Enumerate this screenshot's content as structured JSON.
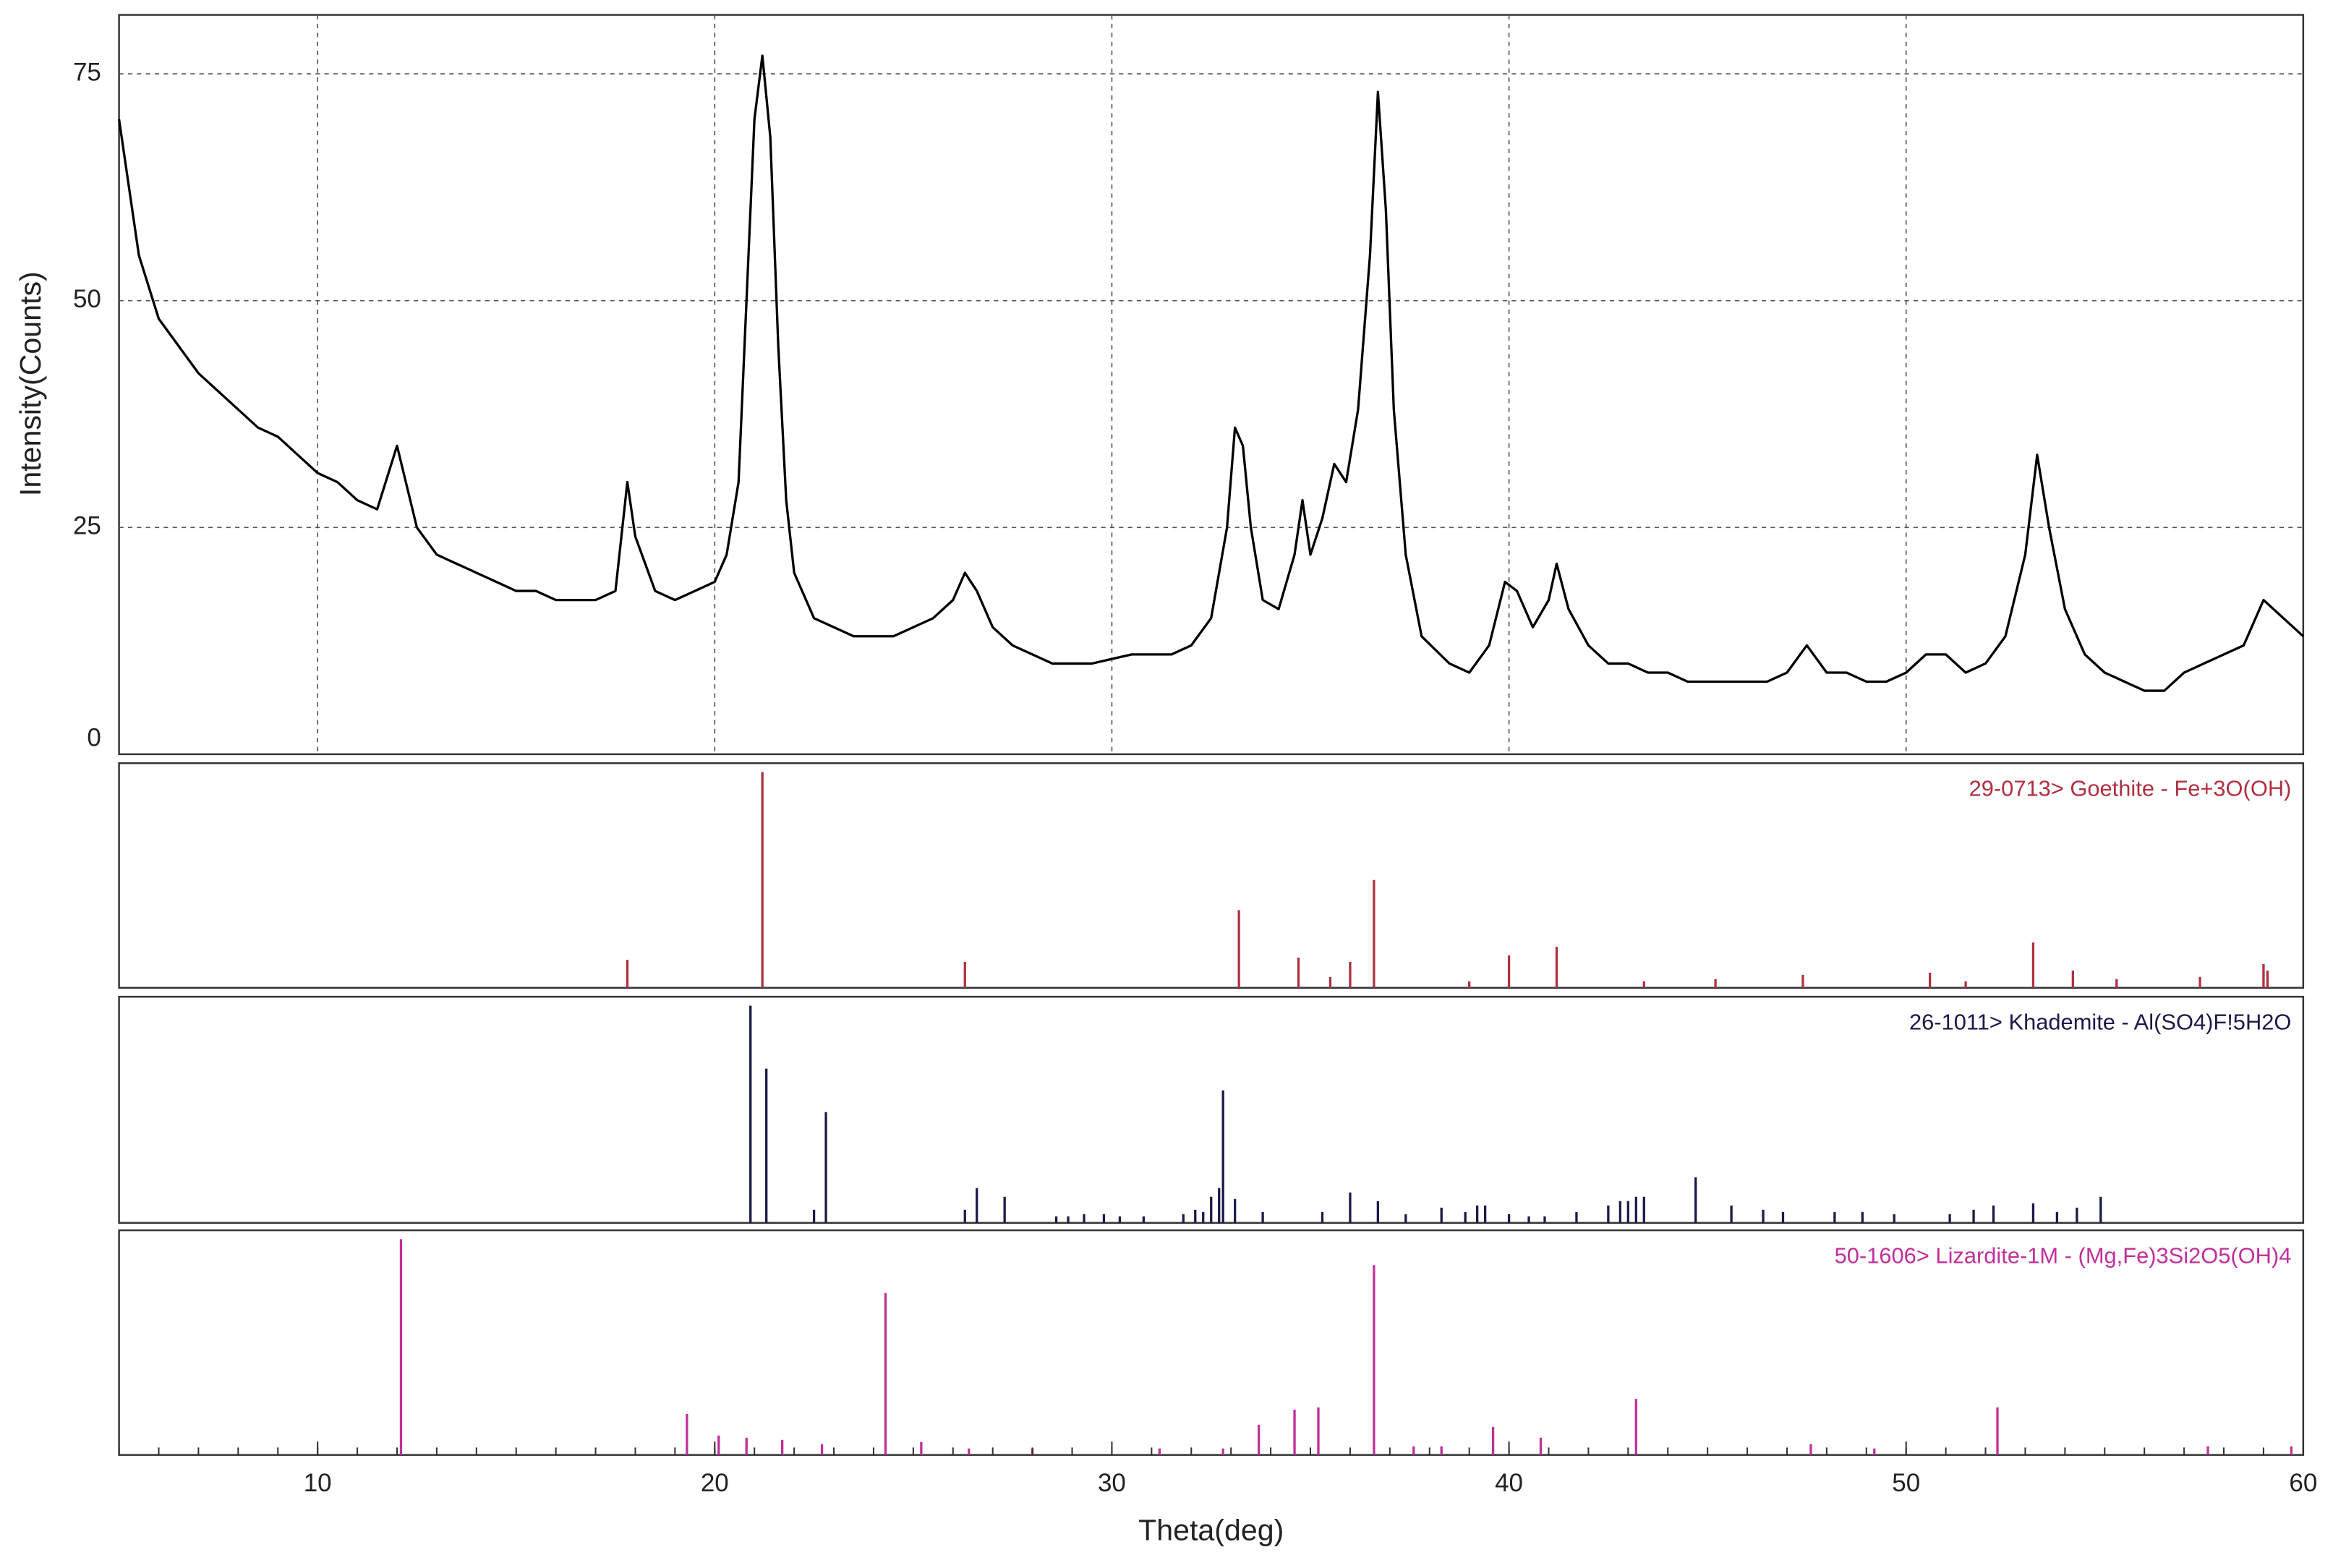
{
  "chart_data": [
    {
      "type": "line",
      "ylabel": "Intensity(Counts)",
      "color": "#000000",
      "grid": true,
      "xlim": [
        5,
        60
      ],
      "ylim": [
        0,
        81.5
      ],
      "xticks": [
        10,
        20,
        30,
        40,
        50,
        60
      ],
      "yticks": [
        0,
        25,
        50,
        75
      ],
      "x": [
        5,
        5.5,
        6,
        6.5,
        7,
        7.5,
        8,
        8.5,
        9,
        9.5,
        10,
        10.5,
        11,
        11.5,
        12,
        12.5,
        13,
        13.5,
        14,
        14.5,
        15,
        15.5,
        16,
        16.5,
        17,
        17.5,
        17.8,
        18,
        18.5,
        19,
        19.5,
        20,
        20.3,
        20.6,
        20.8,
        21,
        21.2,
        21.4,
        21.6,
        21.8,
        22,
        22.5,
        23,
        23.5,
        24,
        24.5,
        25,
        25.5,
        26,
        26.3,
        26.6,
        27,
        27.5,
        28,
        28.5,
        29,
        29.5,
        30,
        30.5,
        31,
        31.5,
        32,
        32.5,
        32.9,
        33.1,
        33.3,
        33.5,
        33.8,
        34.2,
        34.6,
        34.8,
        35,
        35.3,
        35.6,
        35.9,
        36.2,
        36.5,
        36.7,
        36.9,
        37.1,
        37.4,
        37.8,
        38.5,
        39,
        39.5,
        39.9,
        40.2,
        40.6,
        41,
        41.2,
        41.5,
        42,
        42.5,
        43,
        43.5,
        44,
        44.5,
        45,
        45.5,
        46,
        46.5,
        47,
        47.5,
        48,
        48.5,
        49,
        49.5,
        50,
        50.5,
        51,
        51.5,
        52,
        52.5,
        53,
        53.3,
        53.6,
        54,
        54.5,
        55,
        55.5,
        56,
        56.5,
        57,
        57.5,
        58,
        58.5,
        59,
        59.5,
        60
      ],
      "values": [
        70,
        55,
        48,
        45,
        42,
        40,
        38,
        36,
        35,
        33,
        31,
        30,
        28,
        27,
        34,
        25,
        22,
        21,
        20,
        19,
        18,
        18,
        17,
        17,
        17,
        18,
        30,
        24,
        18,
        17,
        18,
        19,
        22,
        30,
        50,
        70,
        77,
        68,
        45,
        28,
        20,
        15,
        14,
        13,
        13,
        13,
        14,
        15,
        17,
        20,
        18,
        14,
        12,
        11,
        10,
        10,
        10,
        10.5,
        11,
        11,
        11,
        12,
        15,
        25,
        36,
        34,
        25,
        17,
        16,
        22,
        28,
        22,
        26,
        32,
        30,
        38,
        55,
        73,
        60,
        38,
        22,
        13,
        10,
        9,
        12,
        19,
        18,
        14,
        17,
        21,
        16,
        12,
        10,
        10,
        9,
        9,
        8,
        8,
        8,
        8,
        8,
        9,
        12,
        9,
        9,
        8,
        8,
        9,
        11,
        11,
        9,
        10,
        13,
        22,
        33,
        25,
        16,
        11,
        9,
        8,
        7,
        7,
        9,
        10,
        11,
        12,
        17,
        15,
        13
      ]
    },
    {
      "type": "stick",
      "title": "29-0713> Goethite - Fe+3O(OH)",
      "color": "#b03040",
      "xlim": [
        5,
        60
      ],
      "ylim": [
        0,
        100
      ],
      "x": [
        17.8,
        21.2,
        26.3,
        33.2,
        34.7,
        35.5,
        36.0,
        36.6,
        39.0,
        40.0,
        41.2,
        43.4,
        45.2,
        47.4,
        50.6,
        51.5,
        53.2,
        54.2,
        55.3,
        57.4,
        59.0,
        59.1
      ],
      "values": [
        13,
        100,
        12,
        36,
        14,
        5,
        12,
        50,
        3,
        15,
        19,
        3,
        4,
        6,
        7,
        3,
        21,
        8,
        4,
        5,
        11,
        8
      ]
    },
    {
      "type": "stick",
      "title": "26-1011> Khademite - Al(SO4)F!5H2O",
      "color": "#1a1a4a",
      "xlim": [
        5,
        60
      ],
      "ylim": [
        0,
        100
      ],
      "x": [
        20.9,
        21.3,
        22.5,
        22.8,
        26.3,
        26.6,
        27.3,
        28.6,
        28.9,
        29.3,
        29.8,
        30.2,
        30.8,
        31.8,
        32.1,
        32.3,
        32.5,
        32.7,
        32.8,
        33.1,
        33.8,
        35.3,
        36.0,
        36.7,
        37.4,
        38.3,
        38.9,
        39.2,
        39.4,
        40.0,
        40.5,
        40.9,
        41.7,
        42.5,
        42.8,
        43.0,
        43.2,
        43.4,
        44.7,
        45.6,
        46.4,
        46.9,
        48.2,
        48.9,
        49.7,
        51.1,
        51.7,
        52.2,
        53.2,
        53.8,
        54.3,
        54.9
      ],
      "values": [
        100,
        71,
        6,
        51,
        6,
        16,
        12,
        3,
        3,
        4,
        4,
        3,
        3,
        4,
        6,
        5,
        12,
        16,
        61,
        11,
        5,
        5,
        14,
        10,
        4,
        7,
        5,
        8,
        8,
        4,
        3,
        3,
        5,
        8,
        10,
        10,
        12,
        12,
        21,
        8,
        6,
        5,
        5,
        5,
        4,
        4,
        6,
        8,
        9,
        5,
        7,
        12
      ]
    },
    {
      "type": "stick",
      "title": "50-1606> Lizardite-1M - (Mg,Fe)3Si2O5(OH)4",
      "color": "#c0309a",
      "xlim": [
        5,
        60
      ],
      "ylim": [
        0,
        100
      ],
      "xlabel": "Theta(deg)",
      "xticks": [
        10,
        20,
        30,
        40,
        50,
        60
      ],
      "x": [
        12.1,
        19.3,
        20.1,
        20.8,
        21.7,
        22.7,
        24.3,
        25.2,
        26.4,
        28.0,
        31.2,
        32.8,
        33.7,
        34.6,
        35.2,
        36.6,
        37.6,
        38.3,
        39.6,
        40.8,
        43.2,
        47.6,
        49.2,
        52.3,
        57.6,
        59.7
      ],
      "values": [
        100,
        19,
        9,
        8,
        7,
        5,
        75,
        6,
        3,
        3,
        3,
        3,
        14,
        21,
        22,
        88,
        4,
        4,
        13,
        8,
        26,
        5,
        3,
        22,
        4,
        4
      ]
    }
  ]
}
